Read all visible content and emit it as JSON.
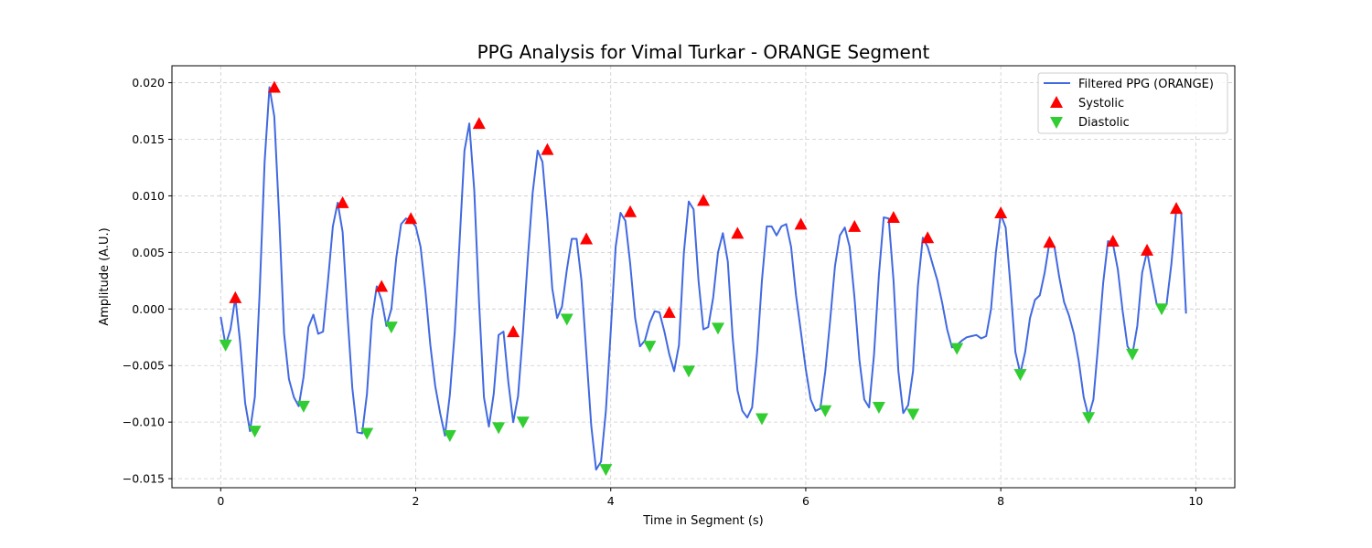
{
  "chart_data": {
    "type": "line",
    "title": "PPG Analysis for Vimal Turkar - ORANGE Segment",
    "xlabel": "Time in Segment (s)",
    "ylabel": "Amplitude (A.U.)",
    "xlim": [
      -0.5,
      10.4
    ],
    "ylim": [
      -0.0158,
      0.0215
    ],
    "xticks": [
      0,
      2,
      4,
      6,
      8,
      10
    ],
    "xtick_labels": [
      "0",
      "2",
      "4",
      "6",
      "8",
      "10"
    ],
    "yticks": [
      -0.015,
      -0.01,
      -0.005,
      0.0,
      0.005,
      0.01,
      0.015,
      0.02
    ],
    "ytick_labels": [
      "−0.015",
      "−0.010",
      "−0.005",
      "0.000",
      "0.005",
      "0.010",
      "0.015",
      "0.020"
    ],
    "grid": true,
    "legend_position": "top-right",
    "colors": {
      "filtered": "#4169e1",
      "systolic": "#ff0000",
      "diastolic": "#32cd32"
    },
    "series": [
      {
        "name": "Filtered PPG (ORANGE)",
        "kind": "line",
        "x": [
          0.0,
          0.05,
          0.1,
          0.15,
          0.2,
          0.25,
          0.3,
          0.35,
          0.4,
          0.45,
          0.5,
          0.55,
          0.6,
          0.65,
          0.7,
          0.75,
          0.8,
          0.85,
          0.9,
          0.95,
          1.0,
          1.05,
          1.1,
          1.15,
          1.2,
          1.25,
          1.3,
          1.35,
          1.4,
          1.45,
          1.5,
          1.55,
          1.6,
          1.65,
          1.7,
          1.75,
          1.8,
          1.85,
          1.9,
          1.95,
          2.0,
          2.05,
          2.1,
          2.15,
          2.2,
          2.25,
          2.3,
          2.35,
          2.4,
          2.45,
          2.5,
          2.55,
          2.6,
          2.65,
          2.7,
          2.75,
          2.8,
          2.85,
          2.9,
          2.95,
          3.0,
          3.05,
          3.1,
          3.15,
          3.2,
          3.25,
          3.3,
          3.35,
          3.4,
          3.45,
          3.5,
          3.55,
          3.6,
          3.65,
          3.7,
          3.75,
          3.8,
          3.85,
          3.9,
          3.95,
          4.0,
          4.05,
          4.1,
          4.15,
          4.2,
          4.25,
          4.3,
          4.35,
          4.4,
          4.45,
          4.5,
          4.55,
          4.6,
          4.65,
          4.7,
          4.75,
          4.8,
          4.85,
          4.9,
          4.95,
          5.0,
          5.05,
          5.1,
          5.15,
          5.2,
          5.25,
          5.3,
          5.35,
          5.4,
          5.45,
          5.5,
          5.55,
          5.6,
          5.65,
          5.7,
          5.75,
          5.8,
          5.85,
          5.9,
          5.95,
          6.0,
          6.05,
          6.1,
          6.15,
          6.2,
          6.25,
          6.3,
          6.35,
          6.4,
          6.45,
          6.5,
          6.55,
          6.6,
          6.65,
          6.7,
          6.75,
          6.8,
          6.85,
          6.9,
          6.95,
          7.0,
          7.05,
          7.1,
          7.15,
          7.2,
          7.25,
          7.3,
          7.35,
          7.4,
          7.45,
          7.5,
          7.55,
          7.6,
          7.65,
          7.7,
          7.75,
          7.8,
          7.85,
          7.9,
          7.95,
          8.0,
          8.05,
          8.1,
          8.15,
          8.2,
          8.25,
          8.3,
          8.35,
          8.4,
          8.45,
          8.5,
          8.55,
          8.6,
          8.65,
          8.7,
          8.75,
          8.8,
          8.85,
          8.9,
          8.95,
          9.0,
          9.05,
          9.1,
          9.15,
          9.2,
          9.25,
          9.3,
          9.35,
          9.4,
          9.45,
          9.5,
          9.55,
          9.6,
          9.65,
          9.7,
          9.75,
          9.8,
          9.85,
          9.9
        ],
        "y": [
          -0.0007,
          -0.0032,
          -0.0018,
          0.001,
          -0.003,
          -0.0083,
          -0.0108,
          -0.0078,
          0.0015,
          0.013,
          0.0196,
          0.017,
          0.008,
          -0.0022,
          -0.0062,
          -0.0078,
          -0.0086,
          -0.006,
          -0.0016,
          -0.0005,
          -0.0022,
          -0.002,
          0.0025,
          0.0073,
          0.0094,
          0.0068,
          -0.0005,
          -0.007,
          -0.0109,
          -0.011,
          -0.0075,
          -0.001,
          0.002,
          0.0008,
          -0.0015,
          0.0,
          0.0045,
          0.0075,
          0.008,
          0.0078,
          0.0073,
          0.0055,
          0.0015,
          -0.0032,
          -0.0068,
          -0.0092,
          -0.0112,
          -0.0076,
          -0.002,
          0.006,
          0.014,
          0.0164,
          0.0105,
          0.0005,
          -0.0078,
          -0.0104,
          -0.0075,
          -0.0023,
          -0.002,
          -0.0065,
          -0.01,
          -0.0077,
          -0.002,
          0.0045,
          0.0103,
          0.014,
          0.013,
          0.008,
          0.0018,
          -0.0008,
          0.0002,
          0.0035,
          0.0062,
          0.0062,
          0.0025,
          -0.004,
          -0.0103,
          -0.0142,
          -0.0135,
          -0.009,
          -0.002,
          0.0055,
          0.0085,
          0.0078,
          0.004,
          -0.0008,
          -0.0033,
          -0.0028,
          -0.0012,
          -0.0002,
          -0.0003,
          -0.002,
          -0.004,
          -0.0055,
          -0.0032,
          0.005,
          0.0095,
          0.0088,
          0.0025,
          -0.0018,
          -0.0016,
          0.001,
          0.005,
          0.0067,
          0.0042,
          -0.0025,
          -0.0072,
          -0.009,
          -0.0096,
          -0.0087,
          -0.004,
          0.0025,
          0.0073,
          0.0073,
          0.0065,
          0.0073,
          0.0075,
          0.0055,
          0.0012,
          -0.002,
          -0.0053,
          -0.008,
          -0.009,
          -0.0088,
          -0.0055,
          -0.001,
          0.0038,
          0.0065,
          0.0072,
          0.0055,
          0.001,
          -0.0045,
          -0.008,
          -0.0087,
          -0.004,
          0.003,
          0.0081,
          0.008,
          0.0025,
          -0.0055,
          -0.0092,
          -0.0085,
          -0.0055,
          0.002,
          0.0063,
          0.0055,
          0.004,
          0.0025,
          0.0005,
          -0.0018,
          -0.0034,
          -0.0032,
          -0.0028,
          -0.0025,
          -0.0024,
          -0.0023,
          -0.0026,
          -0.0024,
          0.0,
          0.005,
          0.0084,
          0.0072,
          0.002,
          -0.0038,
          -0.0057,
          -0.0038,
          -0.0008,
          0.0008,
          0.0012,
          0.0032,
          0.0059,
          0.0055,
          0.0028,
          0.0006,
          -0.0006,
          -0.0022,
          -0.0046,
          -0.0078,
          -0.0095,
          -0.008,
          -0.003,
          0.0023,
          0.006,
          0.0058,
          0.0035,
          -0.0002,
          -0.0033,
          -0.004,
          -0.0015,
          0.0032,
          0.0051,
          0.0027,
          0.0004,
          0.0002,
          0.0004,
          0.004,
          0.0088,
          0.0085,
          -0.0004
        ]
      },
      {
        "name": "Systolic",
        "kind": "marker",
        "marker": "triangle-up",
        "x": [
          0.15,
          0.55,
          1.25,
          1.65,
          1.95,
          2.65,
          3.0,
          3.35,
          3.75,
          4.2,
          4.6,
          4.95,
          5.3,
          5.95,
          6.5,
          6.9,
          7.25,
          8.0,
          8.5,
          9.15,
          9.5,
          9.8
        ],
        "y": [
          0.001,
          0.0196,
          0.0094,
          0.002,
          0.008,
          0.0164,
          -0.002,
          0.0141,
          0.0062,
          0.0086,
          -0.0003,
          0.0096,
          0.0067,
          0.0075,
          0.0073,
          0.0081,
          0.0063,
          0.0085,
          0.0059,
          0.006,
          0.0052,
          0.0089
        ]
      },
      {
        "name": "Diastolic",
        "kind": "marker",
        "marker": "triangle-down",
        "x": [
          0.05,
          0.35,
          0.85,
          1.5,
          1.75,
          2.35,
          2.85,
          3.1,
          3.55,
          3.95,
          4.4,
          4.8,
          5.1,
          5.55,
          6.2,
          6.75,
          7.1,
          7.55,
          8.2,
          8.9,
          9.35,
          9.65
        ],
        "y": [
          -0.0032,
          -0.0108,
          -0.0086,
          -0.011,
          -0.0016,
          -0.0112,
          -0.0105,
          -0.01,
          -0.0009,
          -0.0142,
          -0.0033,
          -0.0055,
          -0.0017,
          -0.0097,
          -0.009,
          -0.0087,
          -0.0093,
          -0.0035,
          -0.0058,
          -0.0096,
          -0.004,
          0.0
        ]
      }
    ]
  }
}
